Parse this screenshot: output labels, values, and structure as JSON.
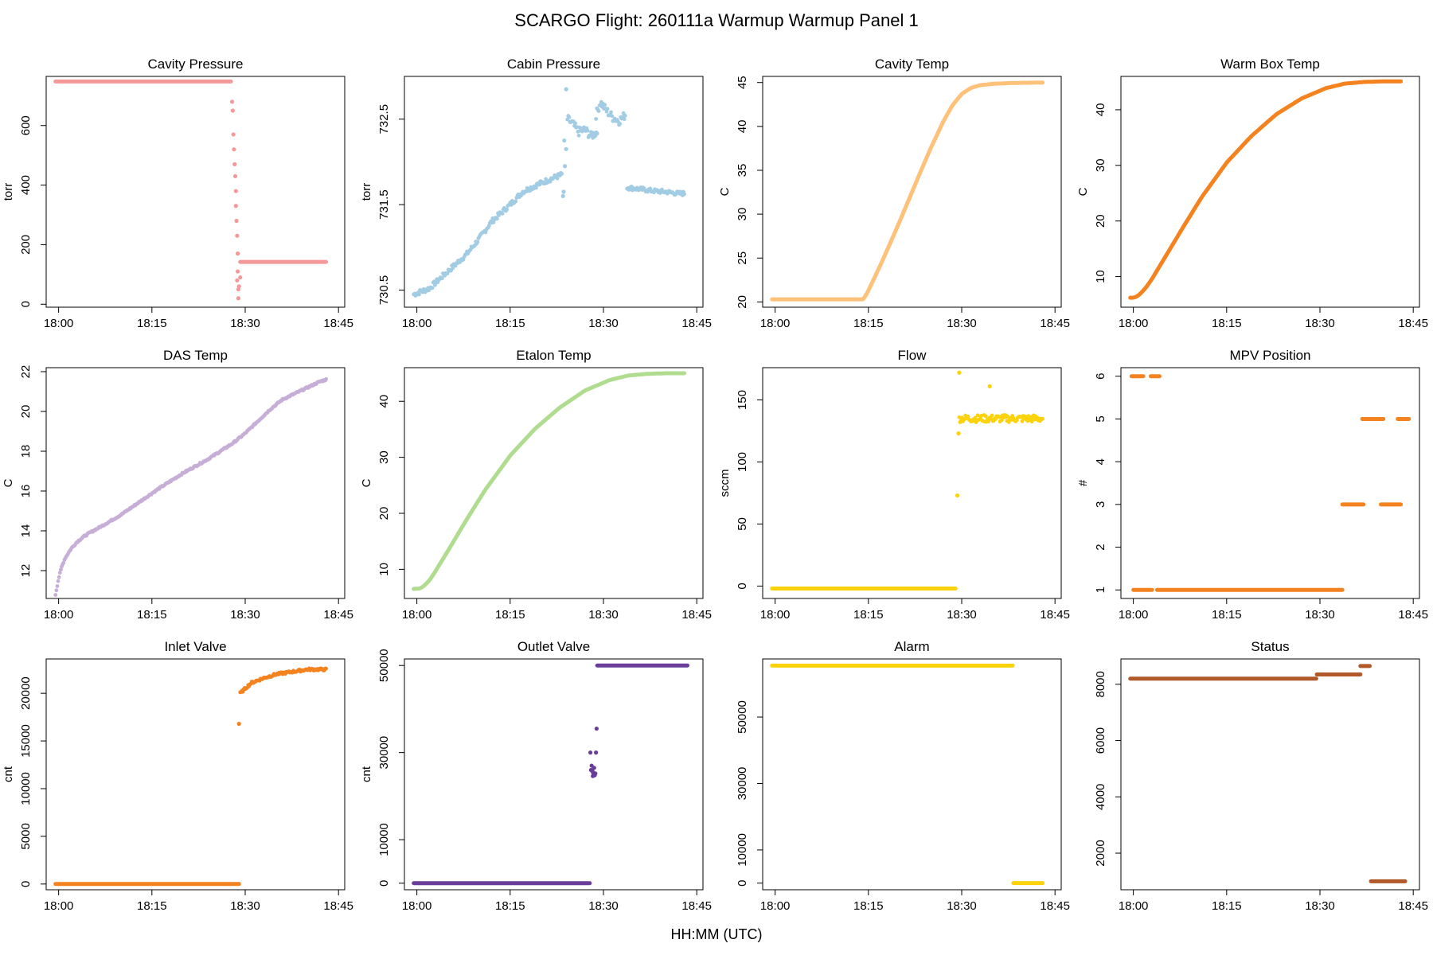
{
  "figure": {
    "title": "SCARGO Flight: 260111a  Warmup Warmup  Panel 1",
    "xlabel": "HH:MM (UTC)"
  },
  "chart_data": [
    {
      "type": "scatter",
      "title": "Cavity Pressure",
      "ylabel": "torr",
      "color": "#f4989a",
      "xlim": [
        -2,
        46
      ],
      "ylim": [
        -10,
        765
      ],
      "xticks": [
        0,
        15,
        30,
        45
      ],
      "xticklabels": [
        "18:00",
        "18:15",
        "18:30",
        "18:45"
      ],
      "yticks": [
        0,
        200,
        400,
        600
      ],
      "yticklabels": [
        "0",
        "200",
        "400",
        "600"
      ],
      "segments": [
        {
          "kind": "hline",
          "x": [
            -0.5,
            27.7
          ],
          "y": 748
        },
        {
          "kind": "points",
          "x": [
            27.9,
            28.0,
            28.1,
            28.2,
            28.3,
            28.4,
            28.5,
            28.5,
            28.6,
            28.7,
            28.8,
            28.8,
            28.9,
            28.9
          ],
          "y": [
            680,
            650,
            570,
            520,
            470,
            430,
            380,
            330,
            280,
            230,
            170,
            110,
            50,
            20
          ]
        },
        {
          "kind": "points",
          "x": [
            28.7,
            29.0,
            29.2
          ],
          "y": [
            80,
            60,
            90
          ]
        },
        {
          "kind": "hline",
          "x": [
            29.2,
            43.0
          ],
          "y": 142
        }
      ]
    },
    {
      "type": "scatter",
      "title": "Cabin Pressure",
      "ylabel": "torr",
      "color": "#a2cce3",
      "xlim": [
        -2,
        46
      ],
      "ylim": [
        730.3,
        733.0
      ],
      "xticks": [
        0,
        15,
        30,
        45
      ],
      "xticklabels": [
        "18:00",
        "18:15",
        "18:30",
        "18:45"
      ],
      "yticks": [
        730.5,
        731.5,
        732.5
      ],
      "yticklabels": [
        "730.5",
        "731.5",
        "732.5"
      ],
      "segments": [
        {
          "kind": "curve",
          "x": [
            -0.5,
            2,
            5,
            8,
            10,
            12,
            15,
            17,
            19,
            21.5,
            23.3
          ],
          "y": [
            730.45,
            730.52,
            730.72,
            730.92,
            731.1,
            731.3,
            731.5,
            731.65,
            731.72,
            731.8,
            731.85
          ],
          "noise": 0.03
        },
        {
          "kind": "points",
          "x": [
            23.5,
            23.6,
            23.8,
            24.0,
            23.7
          ],
          "y": [
            731.6,
            731.65,
            731.95,
            732.15,
            732.25
          ]
        },
        {
          "kind": "curve",
          "x": [
            24.2,
            25,
            26,
            27,
            28,
            29
          ],
          "y": [
            732.5,
            732.45,
            732.35,
            732.38,
            732.3,
            732.35
          ],
          "noise": 0.05
        },
        {
          "kind": "points",
          "x": [
            24.0
          ],
          "y": [
            732.85
          ]
        },
        {
          "kind": "curve",
          "x": [
            28.8,
            29.5,
            30.5,
            31.5,
            32.5,
            33.5
          ],
          "y": [
            732.55,
            732.7,
            732.6,
            732.52,
            732.48,
            732.55
          ],
          "noise": 0.05
        },
        {
          "kind": "curve",
          "x": [
            33.8,
            36,
            38,
            40,
            42,
            43
          ],
          "y": [
            731.7,
            731.68,
            731.66,
            731.65,
            731.63,
            731.63
          ],
          "noise": 0.025
        }
      ]
    },
    {
      "type": "scatter",
      "title": "Cavity Temp",
      "ylabel": "C",
      "color": "#fdc179",
      "xlim": [
        -2,
        46
      ],
      "ylim": [
        19.4,
        45.7
      ],
      "xticks": [
        0,
        15,
        30,
        45
      ],
      "xticklabels": [
        "18:00",
        "18:15",
        "18:30",
        "18:45"
      ],
      "yticks": [
        20,
        25,
        30,
        35,
        40,
        45
      ],
      "yticklabels": [
        "20",
        "25",
        "30",
        "35",
        "40",
        "45"
      ],
      "segments": [
        {
          "kind": "curve",
          "x": [
            -0.5,
            14.2,
            15,
            17,
            19,
            21,
            23,
            25,
            27,
            28.5,
            30,
            31.5,
            33,
            35,
            38,
            43
          ],
          "y": [
            20.3,
            20.3,
            21.3,
            24.3,
            27.5,
            30.8,
            34.2,
            37.5,
            40.5,
            42.4,
            43.7,
            44.4,
            44.7,
            44.85,
            44.95,
            45.0
          ],
          "noise": 0
        }
      ]
    },
    {
      "type": "scatter",
      "title": "Warm Box Temp",
      "ylabel": "C",
      "color": "#f4821f",
      "xlim": [
        -2,
        46
      ],
      "ylim": [
        4.5,
        46
      ],
      "xticks": [
        0,
        15,
        30,
        45
      ],
      "xticklabels": [
        "18:00",
        "18:15",
        "18:30",
        "18:45"
      ],
      "yticks": [
        10,
        20,
        30,
        40
      ],
      "yticklabels": [
        "10",
        "20",
        "30",
        "40"
      ],
      "segments": [
        {
          "kind": "curve",
          "x": [
            -0.5,
            0,
            0.5,
            1,
            2,
            3,
            5,
            8,
            11,
            15,
            19,
            23,
            27,
            31,
            34,
            37,
            40,
            43
          ],
          "y": [
            6.2,
            6.2,
            6.4,
            6.8,
            8.0,
            9.6,
            13.3,
            18.9,
            24.3,
            30.5,
            35.3,
            39.2,
            42.0,
            43.9,
            44.7,
            45.0,
            45.1,
            45.1
          ],
          "noise": 0
        }
      ]
    },
    {
      "type": "scatter",
      "title": "DAS Temp",
      "ylabel": "C",
      "color": "#c7aed6",
      "xlim": [
        -2,
        46
      ],
      "ylim": [
        10.6,
        22.2
      ],
      "xticks": [
        0,
        15,
        30,
        45
      ],
      "xticklabels": [
        "18:00",
        "18:15",
        "18:30",
        "18:45"
      ],
      "yticks": [
        12,
        14,
        16,
        18,
        20,
        22
      ],
      "yticklabels": [
        "12",
        "14",
        "16",
        "18",
        "20",
        "22"
      ],
      "segments": [
        {
          "kind": "curve",
          "x": [
            -0.5,
            0,
            0.5,
            1,
            2,
            3,
            4,
            5,
            7,
            10,
            13,
            16,
            20,
            24,
            28,
            30,
            32,
            34,
            36,
            38,
            40,
            42,
            43
          ],
          "y": [
            10.8,
            11.6,
            12.2,
            12.6,
            13.1,
            13.45,
            13.7,
            13.9,
            14.25,
            14.8,
            15.45,
            16.1,
            16.9,
            17.6,
            18.4,
            18.9,
            19.5,
            20.1,
            20.6,
            20.9,
            21.2,
            21.5,
            21.6
          ],
          "noise": 0.04
        }
      ]
    },
    {
      "type": "scatter",
      "title": "Etalon Temp",
      "ylabel": "C",
      "color": "#b0dc8f",
      "xlim": [
        -2,
        46
      ],
      "ylim": [
        4.8,
        46
      ],
      "xticks": [
        0,
        15,
        30,
        45
      ],
      "xticklabels": [
        "18:00",
        "18:15",
        "18:30",
        "18:45"
      ],
      "yticks": [
        10,
        20,
        30,
        40
      ],
      "yticklabels": [
        "10",
        "20",
        "30",
        "40"
      ],
      "segments": [
        {
          "kind": "curve",
          "x": [
            -0.5,
            0.5,
            1,
            2,
            3,
            5,
            8,
            11,
            15,
            19,
            23,
            27,
            31,
            34,
            37,
            40,
            43
          ],
          "y": [
            6.5,
            6.6,
            6.9,
            8.0,
            9.7,
            13.3,
            18.9,
            24.2,
            30.3,
            35.1,
            38.9,
            41.9,
            43.8,
            44.6,
            44.9,
            45.0,
            45.0
          ],
          "noise": 0
        }
      ]
    },
    {
      "type": "scatter",
      "title": "Flow",
      "ylabel": "sccm",
      "color": "#fcd20a",
      "xlim": [
        -2,
        46
      ],
      "ylim": [
        -10,
        176
      ],
      "xticks": [
        0,
        15,
        30,
        45
      ],
      "xticklabels": [
        "18:00",
        "18:15",
        "18:30",
        "18:45"
      ],
      "yticks": [
        0,
        50,
        100,
        150
      ],
      "yticklabels": [
        "0",
        "50",
        "100",
        "150"
      ],
      "segments": [
        {
          "kind": "hline",
          "x": [
            -0.5,
            29.0
          ],
          "y": -2
        },
        {
          "kind": "points",
          "x": [
            29.3,
            29.5,
            29.6,
            34.5
          ],
          "y": [
            73,
            123,
            172,
            161
          ]
        },
        {
          "kind": "curve",
          "x": [
            29.6,
            43.0
          ],
          "y": [
            135,
            135
          ],
          "noise": 3
        }
      ]
    },
    {
      "type": "scatter",
      "title": "MPV Position",
      "ylabel": "#",
      "color": "#f4821f",
      "xlim": [
        -2,
        46
      ],
      "ylim": [
        0.8,
        6.2
      ],
      "xticks": [
        0,
        15,
        30,
        45
      ],
      "xticklabels": [
        "18:00",
        "18:15",
        "18:30",
        "18:45"
      ],
      "yticks": [
        1,
        2,
        3,
        4,
        5,
        6
      ],
      "yticklabels": [
        "1",
        "2",
        "3",
        "4",
        "5",
        "6"
      ],
      "segments": [
        {
          "kind": "hline",
          "x": [
            -0.3,
            1.6
          ],
          "y": 6
        },
        {
          "kind": "hline",
          "x": [
            2.8,
            4.2
          ],
          "y": 6
        },
        {
          "kind": "hline",
          "x": [
            0,
            3.0
          ],
          "y": 1
        },
        {
          "kind": "hline",
          "x": [
            3.8,
            33.6
          ],
          "y": 1
        },
        {
          "kind": "hline",
          "x": [
            33.6,
            37.0
          ],
          "y": 3
        },
        {
          "kind": "hline",
          "x": [
            36.8,
            40.2
          ],
          "y": 5
        },
        {
          "kind": "hline",
          "x": [
            39.8,
            43.0
          ],
          "y": 3
        },
        {
          "kind": "hline",
          "x": [
            42.5,
            44.3
          ],
          "y": 5
        }
      ]
    },
    {
      "type": "scatter",
      "title": "Inlet Valve",
      "ylabel": "cnt",
      "color": "#f4821f",
      "xlim": [
        -2,
        46
      ],
      "ylim": [
        -600,
        23600
      ],
      "xticks": [
        0,
        15,
        30,
        45
      ],
      "xticklabels": [
        "18:00",
        "18:15",
        "18:30",
        "18:45"
      ],
      "yticks": [
        0,
        5000,
        10000,
        15000,
        20000
      ],
      "yticklabels": [
        "0",
        "5000",
        "10000",
        "15000",
        "20000"
      ],
      "segments": [
        {
          "kind": "hline",
          "x": [
            -0.5,
            29.0
          ],
          "y": 0
        },
        {
          "kind": "points",
          "x": [
            29.0
          ],
          "y": [
            16800
          ]
        },
        {
          "kind": "curve",
          "x": [
            29.2,
            30,
            31,
            33,
            35,
            38,
            40,
            43
          ],
          "y": [
            20000,
            20500,
            21100,
            21600,
            22000,
            22300,
            22500,
            22500
          ],
          "noise": 120
        }
      ]
    },
    {
      "type": "scatter",
      "title": "Outlet Valve",
      "ylabel": "cnt",
      "color": "#6a3d9a",
      "xlim": [
        -2,
        46
      ],
      "ylim": [
        -1500,
        51500
      ],
      "xticks": [
        0,
        15,
        30,
        45
      ],
      "xticklabels": [
        "18:00",
        "18:15",
        "18:30",
        "18:45"
      ],
      "yticks": [
        0,
        10000,
        30000,
        50000
      ],
      "yticklabels": [
        "0",
        "10000",
        "30000",
        "50000"
      ],
      "segments": [
        {
          "kind": "hline",
          "x": [
            -0.5,
            27.8
          ],
          "y": 0
        },
        {
          "kind": "points",
          "x": [
            27.9,
            28.1,
            28.0,
            28.3,
            28.4,
            28.5,
            28.6,
            28.7,
            28.3,
            28.2,
            28.8,
            28.9
          ],
          "y": [
            30000,
            27000,
            26000,
            25500,
            25000,
            26500,
            24800,
            25200,
            24600,
            25800,
            30000,
            35500
          ]
        },
        {
          "kind": "hline",
          "x": [
            29.0,
            43.5
          ],
          "y": 50000
        }
      ]
    },
    {
      "type": "scatter",
      "title": "Alarm",
      "ylabel": "",
      "color": "#fcd20a",
      "xlim": [
        -2,
        46
      ],
      "ylim": [
        -2000,
        67500
      ],
      "xticks": [
        0,
        15,
        30,
        45
      ],
      "xticklabels": [
        "18:00",
        "18:15",
        "18:30",
        "18:45"
      ],
      "yticks": [
        0,
        10000,
        30000,
        50000
      ],
      "yticklabels": [
        "0",
        "10000",
        "30000",
        "50000"
      ],
      "segments": [
        {
          "kind": "hline",
          "x": [
            -0.5,
            38.2
          ],
          "y": 65500
        },
        {
          "kind": "hline",
          "x": [
            38.3,
            43.0
          ],
          "y": 0
        }
      ]
    },
    {
      "type": "scatter",
      "title": "Status",
      "ylabel": "",
      "color": "#b15928",
      "xlim": [
        -2,
        46
      ],
      "ylim": [
        700,
        8900
      ],
      "xticks": [
        0,
        15,
        30,
        45
      ],
      "xticklabels": [
        "18:00",
        "18:15",
        "18:30",
        "18:45"
      ],
      "yticks": [
        2000,
        4000,
        6000,
        8000
      ],
      "yticklabels": [
        "2000",
        "4000",
        "6000",
        "8000"
      ],
      "segments": [
        {
          "kind": "hline",
          "x": [
            -0.5,
            29.4
          ],
          "y": 8200
        },
        {
          "kind": "hline",
          "x": [
            29.5,
            36.5
          ],
          "y": 8350
        },
        {
          "kind": "hline",
          "x": [
            36.5,
            38.0
          ],
          "y": 8650
        },
        {
          "kind": "hline",
          "x": [
            38.2,
            43.7
          ],
          "y": 1000
        }
      ]
    }
  ]
}
